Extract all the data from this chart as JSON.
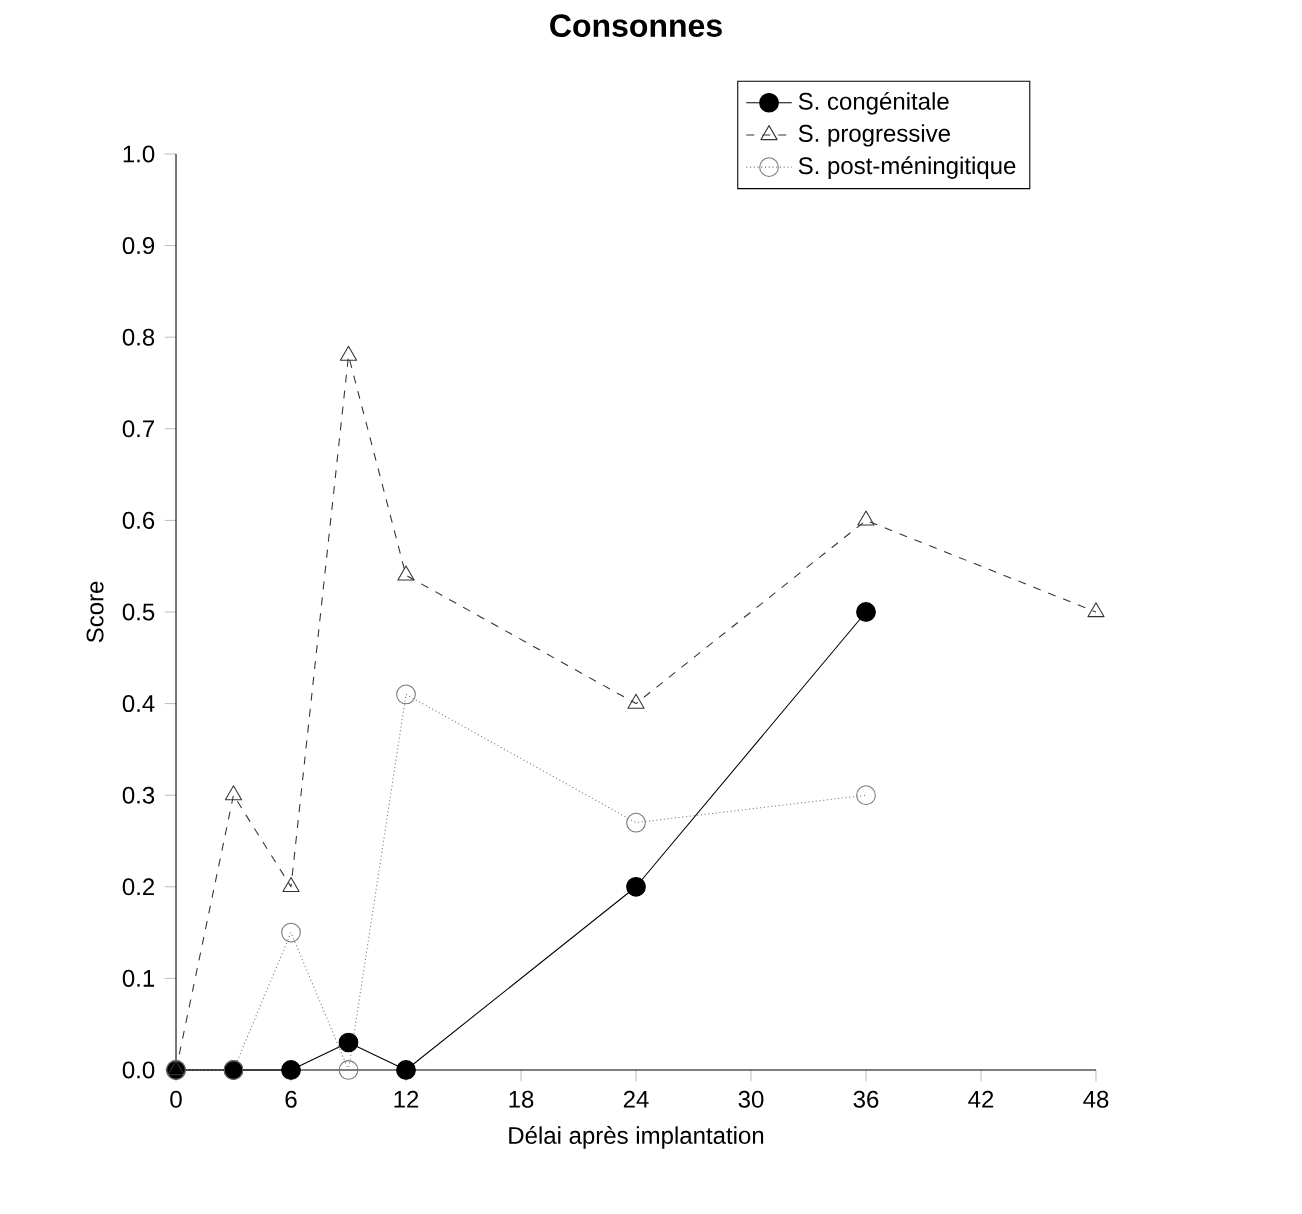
{
  "chart_data": {
    "type": "line",
    "title": "Consonnes",
    "xlabel": "Délai après implantation",
    "ylabel": "Score",
    "xlim": [
      0,
      48
    ],
    "xticks": [
      0,
      6,
      12,
      18,
      24,
      30,
      36,
      42,
      48
    ],
    "ylim": [
      0,
      1
    ],
    "yticks": [
      {
        "value": 0,
        "label": "0.0"
      },
      {
        "value": 0.1,
        "label": "0.1"
      },
      {
        "value": 0.2,
        "label": "0.2"
      },
      {
        "value": 0.3,
        "label": "0.3"
      },
      {
        "value": 0.4,
        "label": "0.4"
      },
      {
        "value": 0.5,
        "label": "0.5"
      },
      {
        "value": 0.6,
        "label": "0.6"
      },
      {
        "value": 0.7,
        "label": "0.7"
      },
      {
        "value": 0.8,
        "label": "0.8"
      },
      {
        "value": 0.9,
        "label": "0.9"
      },
      {
        "value": 1.0,
        "label": "1.0"
      }
    ],
    "legend": "top right",
    "grid": false,
    "series": [
      {
        "name": "S. congénitale",
        "color": "#000000",
        "marker": "circle",
        "line_style": "solid",
        "x": [
          0,
          3,
          6,
          9,
          12,
          24,
          36
        ],
        "values": [
          0,
          0,
          0,
          0.03,
          0,
          0.2,
          0.5
        ]
      },
      {
        "name": "S. progressive",
        "color": "#333333",
        "marker": "triangle",
        "line_style": "dashed",
        "x": [
          0,
          3,
          6,
          9,
          12,
          24,
          36,
          48
        ],
        "values": [
          0,
          0.3,
          0.2,
          0.78,
          0.54,
          0.4,
          0.6,
          0.5
        ]
      },
      {
        "name": "S. post-méningitique",
        "color": "#777777",
        "marker": "circle",
        "line_style": "dotted",
        "x": [
          0,
          3,
          6,
          9,
          12,
          24,
          36
        ],
        "values": [
          0,
          0,
          0.15,
          0,
          0.41,
          0.27,
          0.3
        ]
      }
    ]
  }
}
